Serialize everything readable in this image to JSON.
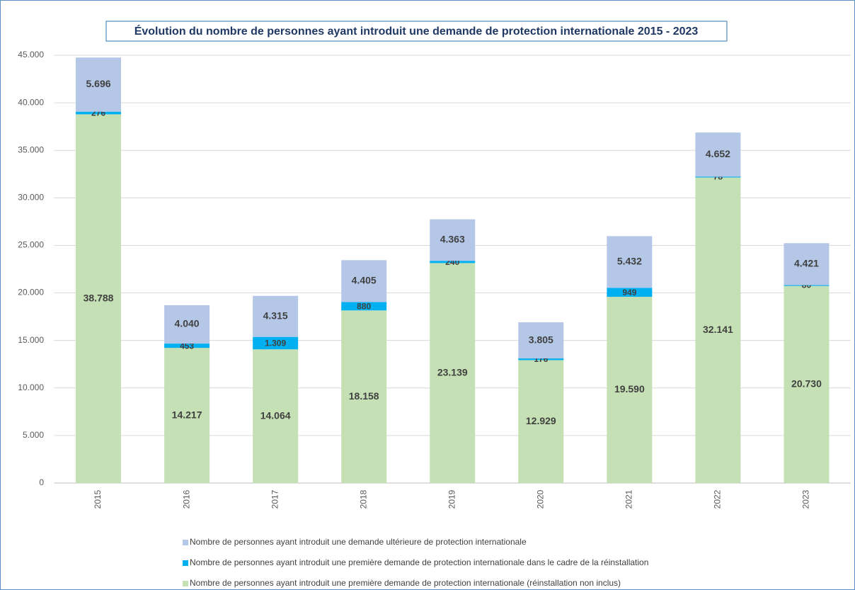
{
  "chart_data": {
    "type": "stacked-bar",
    "title": "Évolution du nombre de personnes ayant introduit une demande de protection internationale 2015 - 2023",
    "categories": [
      "2015",
      "2016",
      "2017",
      "2018",
      "2019",
      "2020",
      "2021",
      "2022",
      "2023"
    ],
    "series": [
      {
        "name": "Nombre de personnes ayant introduit une première demande de protection internationale (réinstallation non inclus)",
        "color": "#c5e0b4",
        "values": [
          38788,
          14217,
          14064,
          18158,
          23139,
          12929,
          19590,
          32141,
          20730
        ],
        "value_labels": [
          "38.788",
          "14.217",
          "14.064",
          "18.158",
          "23.139",
          "12.929",
          "19.590",
          "32.141",
          "20.730"
        ]
      },
      {
        "name": "Nombre de personnes ayant introduit une première demande de protection internationale dans le cadre de la réinstallation",
        "color": "#00b0f0",
        "values": [
          276,
          453,
          1309,
          880,
          240,
          176,
          949,
          78,
          80
        ],
        "value_labels": [
          "276",
          "453",
          "1.309",
          "880",
          "240",
          "176",
          "949",
          "78",
          "80"
        ]
      },
      {
        "name": "Nombre de personnes ayant introduit une demande ultérieure de protection internationale",
        "color": "#b4c7e7",
        "values": [
          5696,
          4040,
          4315,
          4405,
          4363,
          3805,
          5432,
          4652,
          4421
        ],
        "value_labels": [
          "5.696",
          "4.040",
          "4.315",
          "4.405",
          "4.363",
          "3.805",
          "5.432",
          "4.652",
          "4.421"
        ]
      }
    ],
    "ylim": [
      0,
      45000
    ],
    "yticks": [
      0,
      {
        "value": 5000,
        "label": "5.000"
      },
      {
        "value": 10000,
        "label": "10.000"
      },
      {
        "value": 15000,
        "label": "15.000"
      },
      {
        "value": 20000,
        "label": "20.000"
      },
      {
        "value": 25000,
        "label": "25.000"
      },
      {
        "value": 30000,
        "label": "30.000"
      },
      {
        "value": 35000,
        "label": "35.000"
      },
      {
        "value": 40000,
        "label": "40.000"
      },
      {
        "value": 45000,
        "label": "45.000"
      }
    ],
    "grid": true
  }
}
